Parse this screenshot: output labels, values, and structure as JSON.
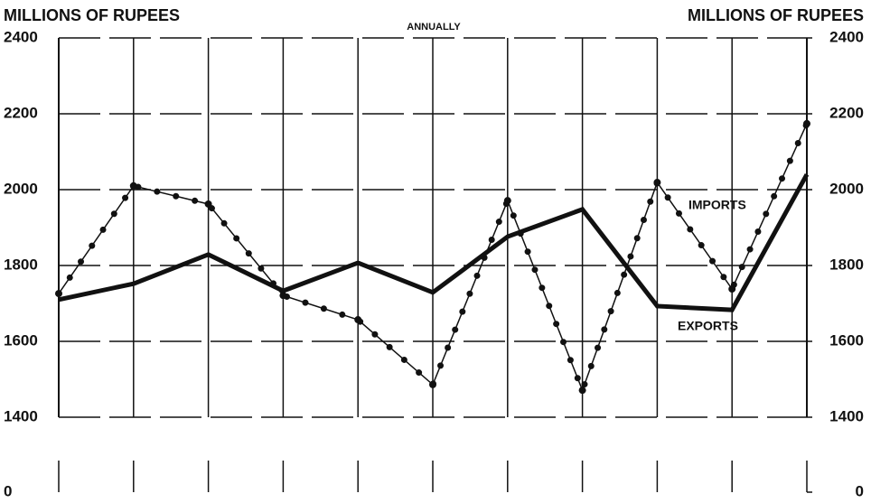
{
  "chart_data": {
    "type": "line",
    "title": "ANNUALLY",
    "y_axis_label": "MILLIONS OF RUPEES",
    "y2_axis_label": "MILLIONS OF RUPEES",
    "categories": [
      null,
      null,
      null,
      null,
      null,
      null,
      null,
      null,
      null,
      null,
      null
    ],
    "series": [
      {
        "name": "IMPORTS",
        "color": "#111111",
        "style": "dotted",
        "values": [
          1726,
          2010,
          1962,
          1721,
          1657,
          1486,
          1971,
          1471,
          2019,
          1738,
          2174
        ]
      },
      {
        "name": "EXPORTS",
        "color": "#111111",
        "style": "thick",
        "values": [
          1710,
          1752,
          1829,
          1733,
          1807,
          1729,
          1876,
          1948,
          1693,
          1683,
          2040
        ]
      }
    ],
    "ylim": [
      0,
      2400
    ],
    "y_break": [
      0,
      1400
    ],
    "yticks": [
      0,
      1400,
      1600,
      1800,
      2000,
      2200,
      2400
    ],
    "y2lim": [
      0,
      2400
    ],
    "y2ticks": [
      0,
      1400,
      1600,
      1800,
      2000,
      2200,
      2400
    ],
    "grid": true
  }
}
